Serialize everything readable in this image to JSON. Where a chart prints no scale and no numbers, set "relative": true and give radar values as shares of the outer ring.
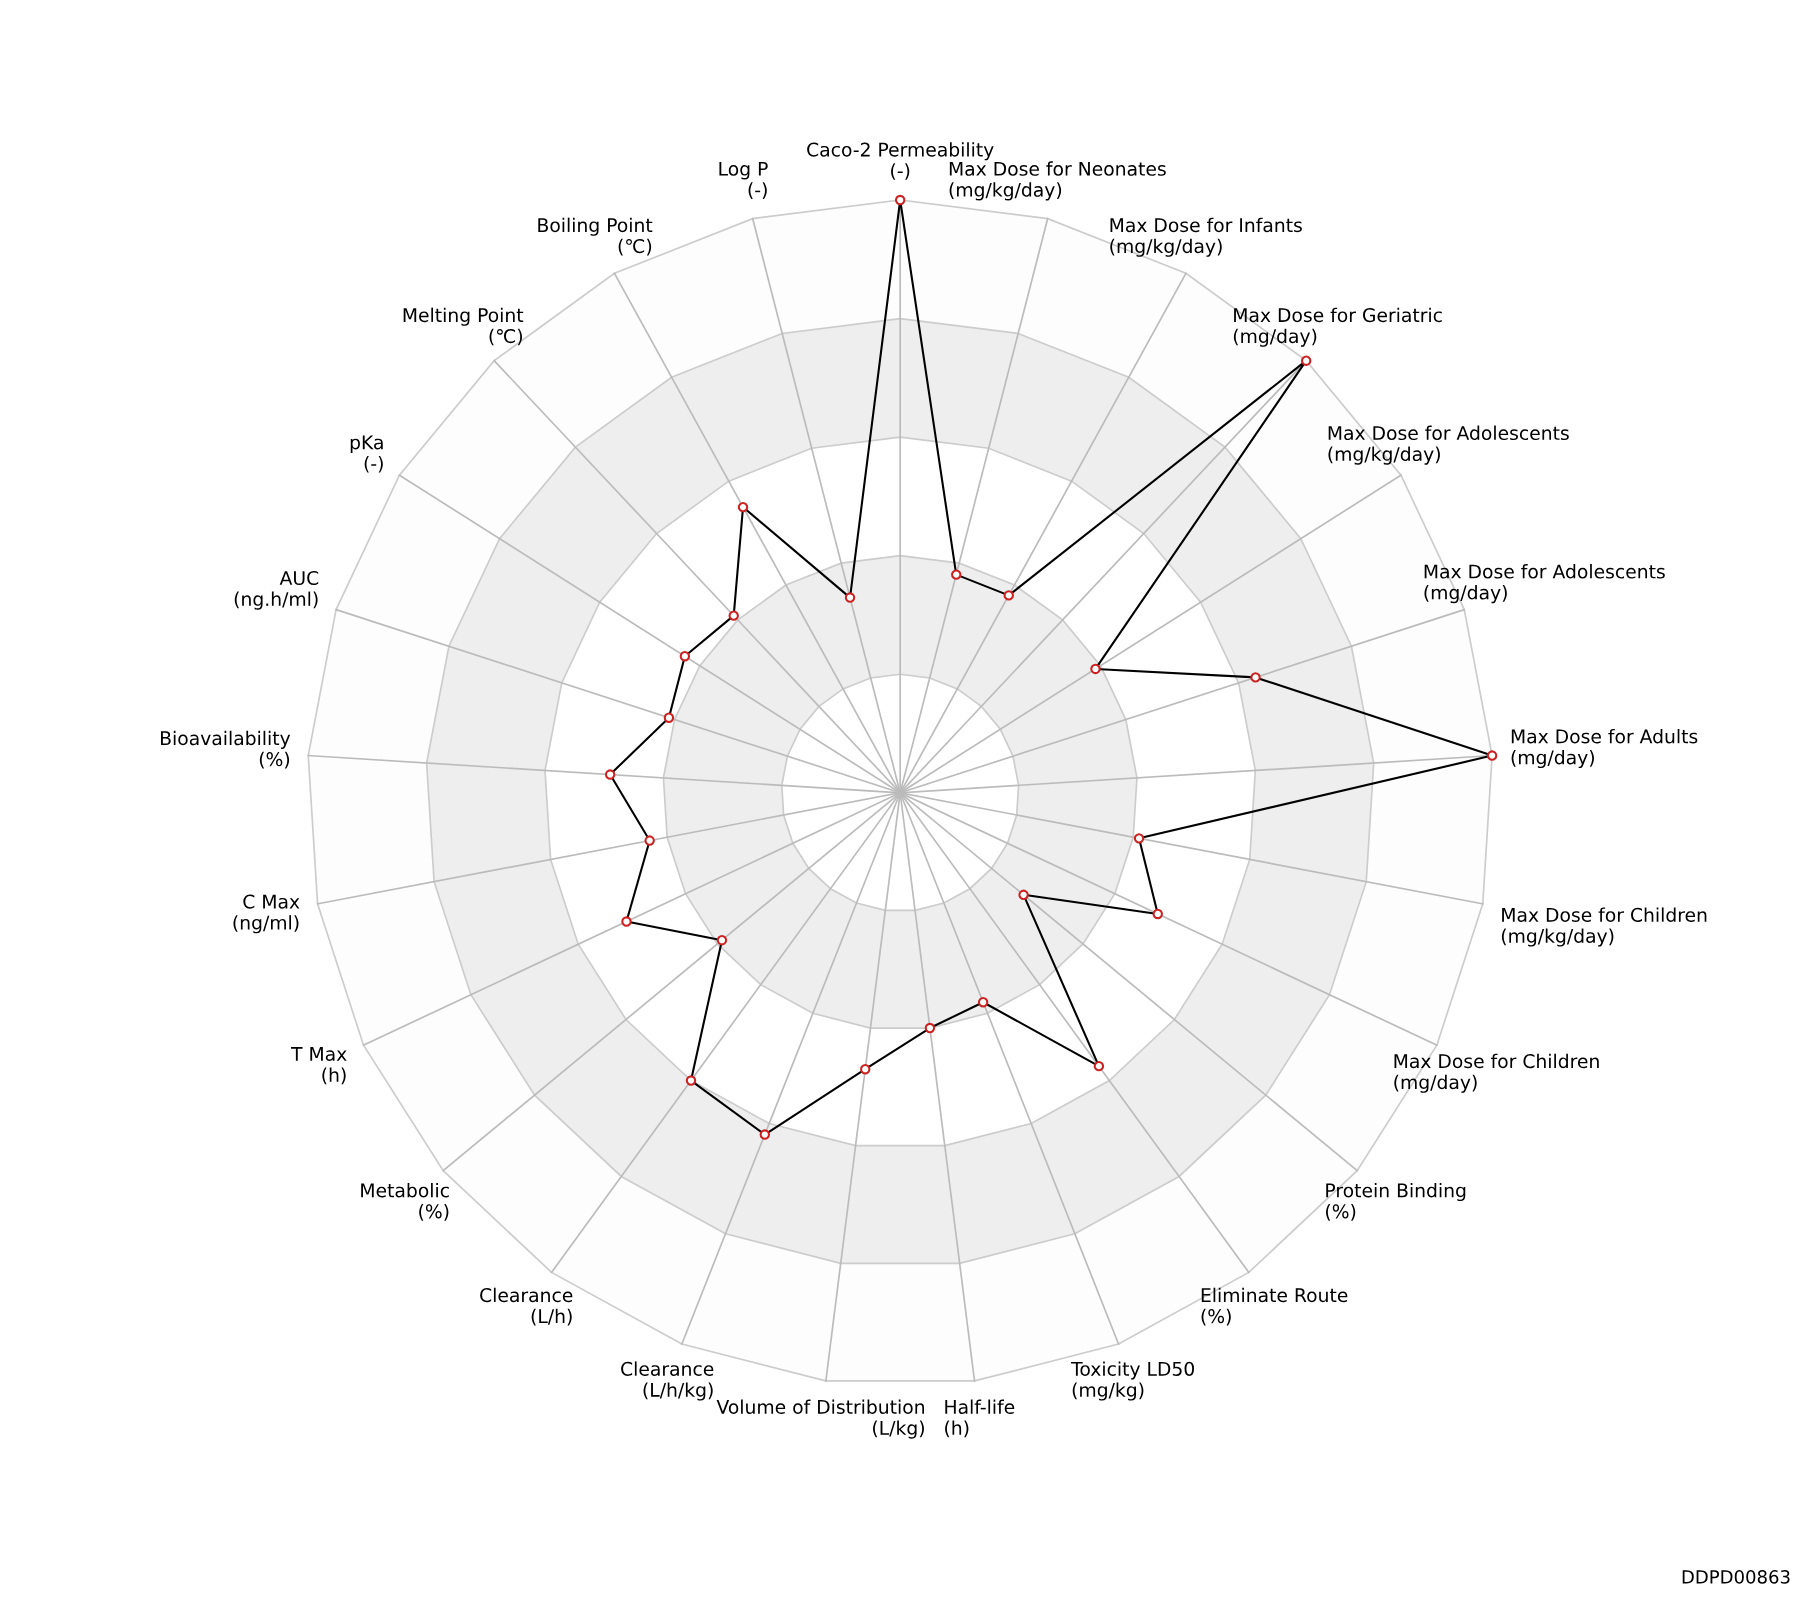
{
  "chart_data": {
    "type": "radar",
    "relative": true,
    "marker": "circle",
    "grid": true,
    "categories": [
      "Caco-2 Permeability\n(-)",
      "Max Dose for Neonates\n(mg/kg/day)",
      "Max Dose for Infants\n(mg/kg/day)",
      "Max Dose for Geriatric\n(mg/day)",
      "Max Dose for Adolescents\n(mg/kg/day)",
      "Max Dose for Adolescents\n(mg/day)",
      "Max Dose for Adults\n(mg/day)",
      "Max Dose for Children\n(mg/kg/day)",
      "Max Dose for Children\n(mg/day)",
      "Protein Binding\n(%)",
      "Eliminate Route\n(%)",
      "Toxicity LD50\n(mg/kg)",
      "Half-life\n(h)",
      "Volume of Distribution\n(L/kg)",
      "Clearance\n(L/h/kg)",
      "Clearance\n(L/h)",
      "Metabolic\n(%)",
      "T Max\n(h)",
      "C Max\n(ng/ml)",
      "Bioavailability\n(%)",
      "AUC\n(ng.h/ml)",
      "pKa\n(-)",
      "Melting Point\n(℃)",
      "Boiling Point\n(℃)",
      "Log P\n(-)"
    ],
    "series": [
      {
        "color": "#000000",
        "values": [
          1.0,
          0.38,
          0.38,
          1.0,
          0.39,
          0.63,
          1.0,
          0.41,
          0.48,
          0.27,
          0.57,
          0.38,
          0.4,
          0.47,
          0.62,
          0.6,
          0.39,
          0.51,
          0.43,
          0.49,
          0.41,
          0.43,
          0.41,
          0.55,
          0.34
        ]
      }
    ],
    "annotations": [
      "DDPD00863"
    ]
  }
}
